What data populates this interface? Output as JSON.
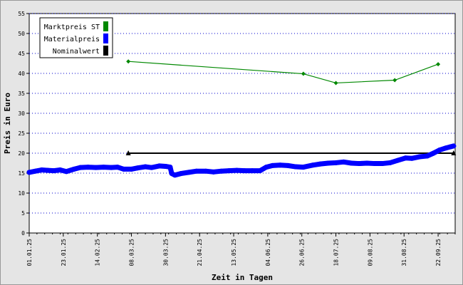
{
  "chart_data": {
    "type": "line",
    "title": "",
    "xlabel": "Zeit in Tagen",
    "ylabel": "Preis in Euro",
    "ylim": [
      0,
      55
    ],
    "y_ticks": [
      "0",
      "5",
      "10",
      "15",
      "20",
      "25",
      "30",
      "35",
      "40",
      "45",
      "50",
      "55"
    ],
    "x_tick_labels": [
      "01.01.25",
      "23.01.25",
      "14.02.25",
      "08.03.25",
      "30.03.25",
      "21.04.25",
      "13.05.25",
      "04.06.25",
      "26.06.25",
      "18.07.25",
      "09.08.25",
      "31.08.25",
      "22.09.25"
    ],
    "x_range": [
      "2025-01-01",
      "2025-10-03"
    ],
    "grid": "horizontal dotted",
    "legend_position": "top-left",
    "series": [
      {
        "name": "Marktpreis ST",
        "color": "#008800",
        "marker": "diamond",
        "points": [
          [
            "2025-03-06",
            43.0
          ],
          [
            "2025-06-27",
            39.9
          ],
          [
            "2025-07-18",
            37.6
          ],
          [
            "2025-08-25",
            38.3
          ],
          [
            "2025-09-22",
            42.3
          ]
        ]
      },
      {
        "name": "Materialpreis",
        "color": "#0000ff",
        "marker": "circle",
        "points": [
          [
            "2025-01-01",
            15.2
          ],
          [
            "2025-01-05",
            15.5
          ],
          [
            "2025-01-09",
            15.8
          ],
          [
            "2025-01-13",
            15.7
          ],
          [
            "2025-01-17",
            15.6
          ],
          [
            "2025-01-21",
            15.8
          ],
          [
            "2025-01-25",
            15.4
          ],
          [
            "2025-01-30",
            16.0
          ],
          [
            "2025-02-03",
            16.4
          ],
          [
            "2025-02-08",
            16.5
          ],
          [
            "2025-02-13",
            16.4
          ],
          [
            "2025-02-18",
            16.5
          ],
          [
            "2025-02-23",
            16.4
          ],
          [
            "2025-02-27",
            16.5
          ],
          [
            "2025-03-03",
            16.0
          ],
          [
            "2025-03-08",
            16.0
          ],
          [
            "2025-03-12",
            16.3
          ],
          [
            "2025-03-17",
            16.6
          ],
          [
            "2025-03-21",
            16.4
          ],
          [
            "2025-03-26",
            16.8
          ],
          [
            "2025-03-30",
            16.7
          ],
          [
            "2025-04-02",
            16.5
          ],
          [
            "2025-04-03",
            14.9
          ],
          [
            "2025-04-05",
            14.5
          ],
          [
            "2025-04-09",
            14.9
          ],
          [
            "2025-04-14",
            15.2
          ],
          [
            "2025-04-19",
            15.5
          ],
          [
            "2025-04-25",
            15.5
          ],
          [
            "2025-04-30",
            15.3
          ],
          [
            "2025-05-05",
            15.5
          ],
          [
            "2025-05-10",
            15.6
          ],
          [
            "2025-05-15",
            15.7
          ],
          [
            "2025-05-20",
            15.6
          ],
          [
            "2025-05-25",
            15.6
          ],
          [
            "2025-05-30",
            15.6
          ],
          [
            "2025-06-03",
            16.5
          ],
          [
            "2025-06-07",
            16.9
          ],
          [
            "2025-06-12",
            17.0
          ],
          [
            "2025-06-17",
            16.9
          ],
          [
            "2025-06-22",
            16.6
          ],
          [
            "2025-06-27",
            16.5
          ],
          [
            "2025-07-03",
            17.0
          ],
          [
            "2025-07-08",
            17.3
          ],
          [
            "2025-07-13",
            17.5
          ],
          [
            "2025-07-18",
            17.6
          ],
          [
            "2025-07-23",
            17.8
          ],
          [
            "2025-07-28",
            17.5
          ],
          [
            "2025-08-02",
            17.4
          ],
          [
            "2025-08-07",
            17.5
          ],
          [
            "2025-08-12",
            17.4
          ],
          [
            "2025-08-17",
            17.4
          ],
          [
            "2025-08-22",
            17.6
          ],
          [
            "2025-08-27",
            18.2
          ],
          [
            "2025-09-01",
            18.8
          ],
          [
            "2025-09-05",
            18.7
          ],
          [
            "2025-09-10",
            19.1
          ],
          [
            "2025-09-15",
            19.3
          ],
          [
            "2025-09-19",
            20.0
          ],
          [
            "2025-09-23",
            20.8
          ],
          [
            "2025-09-27",
            21.3
          ],
          [
            "2025-09-30",
            21.6
          ],
          [
            "2025-10-02",
            21.8
          ]
        ]
      },
      {
        "name": "Nominalwert",
        "color": "#000000",
        "marker": "triangle",
        "points": [
          [
            "2025-03-06",
            20.0
          ],
          [
            "2025-10-02",
            20.0
          ]
        ]
      }
    ]
  }
}
